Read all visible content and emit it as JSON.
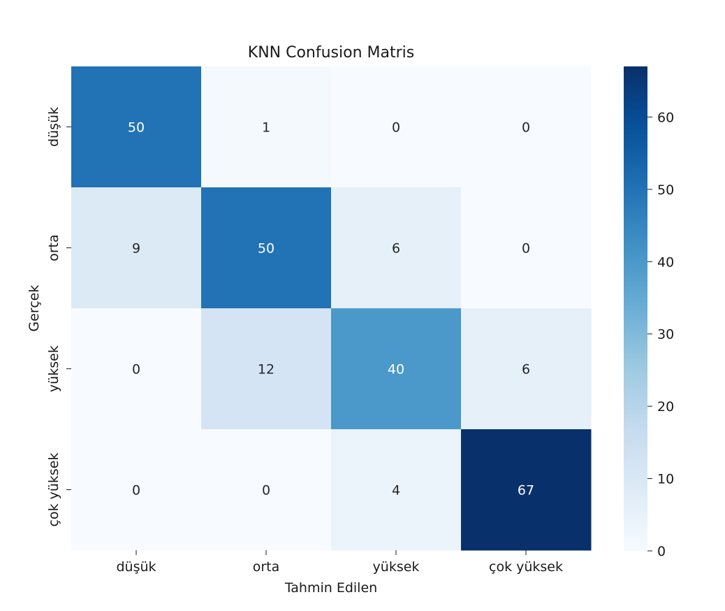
{
  "chart_data": {
    "type": "heatmap",
    "title": "KNN Confusion Matris",
    "xlabel": "Tahmin Edilen",
    "ylabel": "Gerçek",
    "x_categories": [
      "düşük",
      "orta",
      "yüksek",
      "çok yüksek"
    ],
    "y_categories": [
      "düşük",
      "orta",
      "yüksek",
      "çok yüksek"
    ],
    "values": [
      [
        50,
        1,
        0,
        0
      ],
      [
        9,
        50,
        6,
        0
      ],
      [
        0,
        12,
        40,
        6
      ],
      [
        0,
        0,
        4,
        67
      ]
    ],
    "colorbar": {
      "min": 0,
      "max": 67,
      "ticks": [
        0,
        10,
        20,
        30,
        40,
        50,
        60
      ],
      "colormap": "Blues"
    }
  }
}
